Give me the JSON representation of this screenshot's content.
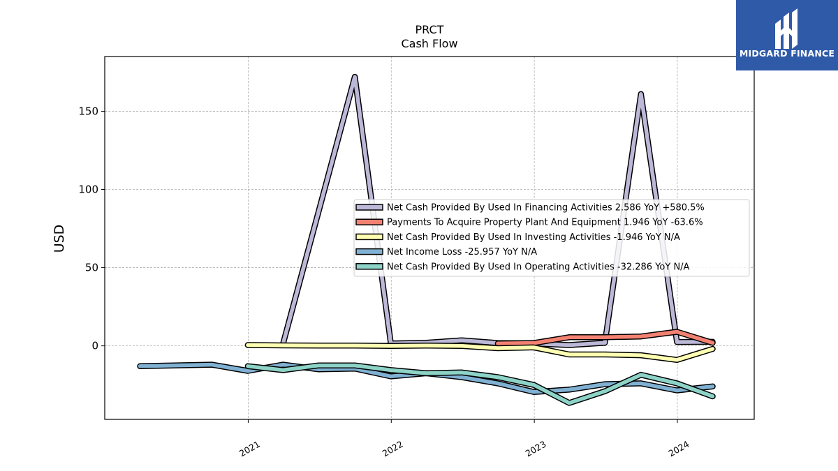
{
  "brand": {
    "name": "MIDGARD FINANCE",
    "bg_color": "#2f5aa8"
  },
  "chart_data": {
    "type": "line",
    "title": "PRCT",
    "subtitle": "Cash Flow",
    "xlabel": "",
    "ylabel": "USD",
    "x_ticks": [
      "2021",
      "2022",
      "2023",
      "2024"
    ],
    "y_ticks": [
      0,
      50,
      100,
      150
    ],
    "xlim": [
      "2020-01-01",
      "2024-07-15"
    ],
    "ylim": [
      -47,
      185
    ],
    "grid": true,
    "legend_position": "center-right",
    "series": [
      {
        "name": "Net Cash Provided By Used In Financing Activities",
        "legend_label": "Net Cash Provided By Used In Financing Activities  2.586 YoY +580.5%",
        "color": "#bcb8d8",
        "points": [
          [
            "2021-03-31",
            1.5
          ],
          [
            "2021-09-30",
            172
          ],
          [
            "2021-12-31",
            1.5
          ],
          [
            "2022-03-31",
            2.0
          ],
          [
            "2022-06-30",
            3.5
          ],
          [
            "2022-09-30",
            1.8
          ],
          [
            "2022-12-31",
            1.5
          ],
          [
            "2023-03-31",
            0.5
          ],
          [
            "2023-06-30",
            2.0
          ],
          [
            "2023-09-30",
            161
          ],
          [
            "2023-12-31",
            2.5
          ],
          [
            "2024-03-31",
            2.586
          ]
        ]
      },
      {
        "name": "Payments To Acquire Property Plant And Equipment",
        "legend_label": "Payments To Acquire Property Plant And Equipment  1.946 YoY -63.6%",
        "color": "#f38172",
        "points": [
          [
            "2022-09-30",
            1.5
          ],
          [
            "2022-12-31",
            1.8
          ],
          [
            "2023-03-31",
            5.5
          ],
          [
            "2023-06-30",
            5.5
          ],
          [
            "2023-09-30",
            6.0
          ],
          [
            "2023-12-31",
            9.0
          ],
          [
            "2024-03-31",
            1.946
          ]
        ]
      },
      {
        "name": "Net Cash Provided By Used In Investing Activities",
        "legend_label": "Net Cash Provided By Used In Investing Activities  -1.946 YoY N/A",
        "color": "#ffffb3",
        "points": [
          [
            "2020-12-31",
            0.5
          ],
          [
            "2021-03-31",
            0.3
          ],
          [
            "2021-06-30",
            0.2
          ],
          [
            "2021-09-30",
            0.2
          ],
          [
            "2021-12-31",
            0.0
          ],
          [
            "2022-03-31",
            0.2
          ],
          [
            "2022-06-30",
            0.0
          ],
          [
            "2022-09-30",
            -1.5
          ],
          [
            "2022-12-31",
            -1.0
          ],
          [
            "2023-03-31",
            -5.5
          ],
          [
            "2023-06-30",
            -5.5
          ],
          [
            "2023-09-30",
            -6.0
          ],
          [
            "2023-12-31",
            -9.0
          ],
          [
            "2024-03-31",
            -1.946
          ]
        ]
      },
      {
        "name": "Net Income Loss",
        "legend_label": "Net Income Loss  -25.957 YoY N/A",
        "color": "#80b1d3",
        "points": [
          [
            "2020-03-31",
            -13
          ],
          [
            "2020-09-30",
            -12
          ],
          [
            "2020-12-31",
            -16
          ],
          [
            "2021-03-31",
            -12
          ],
          [
            "2021-06-30",
            -15
          ],
          [
            "2021-09-30",
            -14.5
          ],
          [
            "2021-12-31",
            -19.5
          ],
          [
            "2022-03-31",
            -17.5
          ],
          [
            "2022-06-30",
            -20
          ],
          [
            "2022-09-30",
            -24
          ],
          [
            "2022-12-31",
            -29.5
          ],
          [
            "2023-03-31",
            -28
          ],
          [
            "2023-06-30",
            -24.5
          ],
          [
            "2023-09-30",
            -24
          ],
          [
            "2023-12-31",
            -28.5
          ],
          [
            "2024-03-31",
            -25.957
          ]
        ]
      },
      {
        "name": "Net Cash Provided By Used In Operating Activities",
        "legend_label": "Net Cash Provided By Used In Operating Activities  -32.286 YoY N/A",
        "color": "#8dd3c7",
        "points": [
          [
            "2020-12-31",
            -13
          ],
          [
            "2021-03-31",
            -15.5
          ],
          [
            "2021-06-30",
            -12.5
          ],
          [
            "2021-09-30",
            -12.5
          ],
          [
            "2021-12-31",
            -15.5
          ],
          [
            "2022-03-31",
            -17.5
          ],
          [
            "2022-06-30",
            -17
          ],
          [
            "2022-09-30",
            -20
          ],
          [
            "2022-12-31",
            -25
          ],
          [
            "2023-03-31",
            -36.5
          ],
          [
            "2023-06-30",
            -29
          ],
          [
            "2023-09-30",
            -18.5
          ],
          [
            "2023-12-31",
            -24
          ],
          [
            "2024-03-31",
            -32.286
          ]
        ]
      }
    ]
  }
}
